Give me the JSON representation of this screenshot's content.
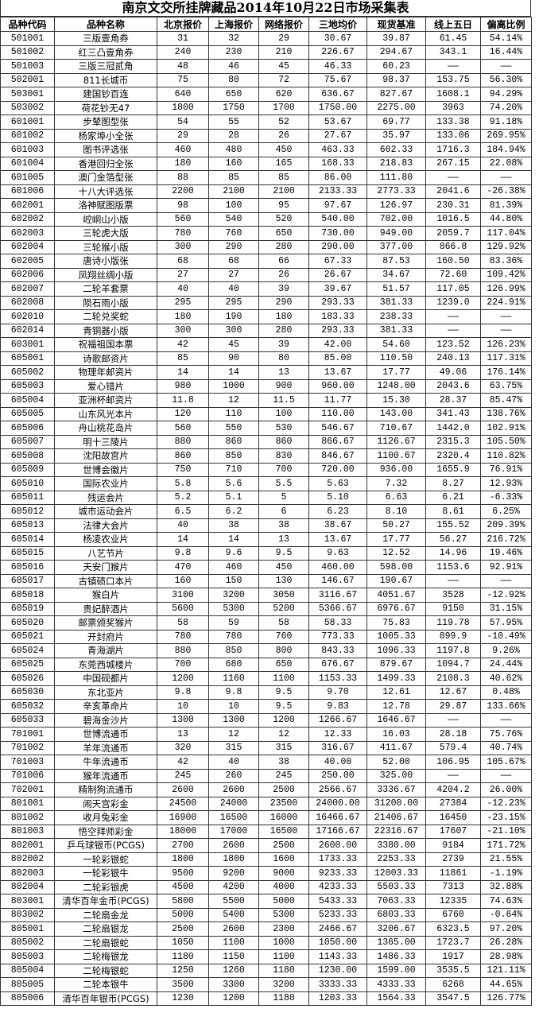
{
  "title": "南京文交所挂牌藏品2014年10月22日市场采集表",
  "columns": [
    "品种代码",
    "品种名称",
    "北京报价",
    "上海报价",
    "网络报价",
    "三地均价",
    "现货基准",
    "线上五日",
    "偏离比例"
  ],
  "rows": [
    [
      "501001",
      "三版壹角券",
      "31",
      "32",
      "29",
      "30.67",
      "39.87",
      "61.45",
      "54.14%"
    ],
    [
      "501002",
      "红三凸壹角券",
      "240",
      "230",
      "210",
      "226.67",
      "294.67",
      "343.1",
      "16.44%"
    ],
    [
      "501003",
      "三版三冠贰角",
      "48",
      "46",
      "45",
      "46.33",
      "60.23",
      "——",
      "——"
    ],
    [
      "502001",
      "811长城币",
      "75",
      "80",
      "72",
      "75.67",
      "98.37",
      "153.75",
      "56.30%"
    ],
    [
      "503001",
      "建国钞百连",
      "640",
      "650",
      "620",
      "636.67",
      "827.67",
      "1608.1",
      "94.29%"
    ],
    [
      "503002",
      "荷花钞无47",
      "1800",
      "1750",
      "1700",
      "1750.00",
      "2275.00",
      "3963",
      "74.20%"
    ],
    [
      "601001",
      "步辇图型张",
      "54",
      "55",
      "52",
      "53.67",
      "69.77",
      "133.38",
      "91.18%"
    ],
    [
      "601002",
      "杨家埠小全张",
      "29",
      "28",
      "26",
      "27.67",
      "35.97",
      "133.06",
      "269.95%"
    ],
    [
      "601003",
      "图书评选张",
      "460",
      "480",
      "450",
      "463.33",
      "602.33",
      "1716.3",
      "184.94%"
    ],
    [
      "601004",
      "香港回归全张",
      "180",
      "160",
      "165",
      "168.33",
      "218.83",
      "267.15",
      "22.08%"
    ],
    [
      "601005",
      "澳门金箔型张",
      "88",
      "85",
      "85",
      "86.00",
      "111.80",
      "——",
      "——"
    ],
    [
      "601006",
      "十八大评选张",
      "2200",
      "2100",
      "2100",
      "2133.33",
      "2773.33",
      "2041.6",
      "-26.38%"
    ],
    [
      "602001",
      "洛神赋图版票",
      "98",
      "100",
      "95",
      "97.67",
      "126.97",
      "230.31",
      "81.39%"
    ],
    [
      "602002",
      "崆峒山小版",
      "560",
      "540",
      "520",
      "540.00",
      "702.00",
      "1016.5",
      "44.80%"
    ],
    [
      "602003",
      "三轮虎大版",
      "780",
      "760",
      "650",
      "730.00",
      "949.00",
      "2059.7",
      "117.04%"
    ],
    [
      "602004",
      "三轮猴小版",
      "300",
      "290",
      "280",
      "290.00",
      "377.00",
      "866.8",
      "129.92%"
    ],
    [
      "602005",
      "唐诗小版张",
      "68",
      "68",
      "66",
      "67.33",
      "87.53",
      "160.50",
      "83.36%"
    ],
    [
      "602006",
      "凤翔丝绸小版",
      "27",
      "27",
      "26",
      "26.67",
      "34.67",
      "72.60",
      "109.42%"
    ],
    [
      "602007",
      "二轮羊套票",
      "40",
      "40",
      "39",
      "39.67",
      "51.57",
      "117.05",
      "126.99%"
    ],
    [
      "602008",
      "陨石雨小版",
      "295",
      "295",
      "290",
      "293.33",
      "381.33",
      "1239.0",
      "224.91%"
    ],
    [
      "602010",
      "二轮兑奖蛇",
      "180",
      "190",
      "180",
      "183.33",
      "238.33",
      "——",
      "——"
    ],
    [
      "602014",
      "青铜器小版",
      "300",
      "300",
      "280",
      "293.33",
      "381.33",
      "——",
      "——"
    ],
    [
      "603001",
      "祝福祖国本票",
      "42",
      "45",
      "39",
      "42.00",
      "54.60",
      "123.52",
      "126.23%"
    ],
    [
      "605001",
      "诗歌邮资片",
      "85",
      "90",
      "80",
      "85.00",
      "110.50",
      "240.13",
      "117.31%"
    ],
    [
      "605002",
      "物理年邮资片",
      "14",
      "14",
      "13",
      "13.67",
      "17.77",
      "49.06",
      "176.14%"
    ],
    [
      "605003",
      "爱心错片",
      "980",
      "1000",
      "900",
      "960.00",
      "1248.00",
      "2043.6",
      "63.75%"
    ],
    [
      "605004",
      "亚洲杯邮资片",
      "11.8",
      "12",
      "11.5",
      "11.77",
      "15.30",
      "28.37",
      "85.47%"
    ],
    [
      "605005",
      "山东风光本片",
      "120",
      "110",
      "100",
      "110.00",
      "143.00",
      "341.43",
      "138.76%"
    ],
    [
      "605006",
      "舟山桃花岛片",
      "560",
      "550",
      "530",
      "546.67",
      "710.67",
      "1442.0",
      "102.91%"
    ],
    [
      "605007",
      "明十三陵片",
      "880",
      "860",
      "860",
      "866.67",
      "1126.67",
      "2315.3",
      "105.50%"
    ],
    [
      "605008",
      "沈阳故宫片",
      "860",
      "850",
      "830",
      "846.67",
      "1100.67",
      "2320.4",
      "110.82%"
    ],
    [
      "605009",
      "世博会徽片",
      "750",
      "710",
      "700",
      "720.00",
      "936.00",
      "1655.9",
      "76.91%"
    ],
    [
      "605010",
      "国际农业片",
      "5.8",
      "5.6",
      "5.5",
      "5.63",
      "7.32",
      "8.27",
      "12.93%"
    ],
    [
      "605011",
      "残运会片",
      "5.2",
      "5.1",
      "5",
      "5.10",
      "6.63",
      "6.21",
      "-6.33%"
    ],
    [
      "605012",
      "城市运动会片",
      "6.5",
      "6.2",
      "6",
      "6.23",
      "8.10",
      "8.61",
      "6.25%"
    ],
    [
      "605013",
      "法律大会片",
      "40",
      "38",
      "38",
      "38.67",
      "50.27",
      "155.52",
      "209.39%"
    ],
    [
      "605014",
      "杨凌农业片",
      "14",
      "14",
      "13",
      "13.67",
      "17.77",
      "56.27",
      "216.72%"
    ],
    [
      "605015",
      "八艺节片",
      "9.8",
      "9.6",
      "9.5",
      "9.63",
      "12.52",
      "14.96",
      "19.46%"
    ],
    [
      "605016",
      "天安门猴片",
      "470",
      "460",
      "450",
      "460.00",
      "598.00",
      "1153.6",
      "92.91%"
    ],
    [
      "605017",
      "古镇碛口本片",
      "160",
      "150",
      "130",
      "146.67",
      "190.67",
      "——",
      "——"
    ],
    [
      "605018",
      "猴白片",
      "3100",
      "3200",
      "3050",
      "3116.67",
      "4051.67",
      "3528",
      "-12.92%"
    ],
    [
      "605019",
      "贵妃醉酒片",
      "5600",
      "5300",
      "5200",
      "5366.67",
      "6976.67",
      "9150",
      "31.15%"
    ],
    [
      "605020",
      "邮票颁奖猴片",
      "58",
      "59",
      "58",
      "58.33",
      "75.83",
      "119.78",
      "57.95%"
    ],
    [
      "605021",
      "开封府片",
      "780",
      "780",
      "760",
      "773.33",
      "1005.33",
      "899.9",
      "-10.49%"
    ],
    [
      "605024",
      "青海湖片",
      "880",
      "850",
      "800",
      "843.33",
      "1096.33",
      "1197.8",
      "9.26%"
    ],
    [
      "605025",
      "东莞西城楼片",
      "700",
      "680",
      "650",
      "676.67",
      "879.67",
      "1094.7",
      "24.44%"
    ],
    [
      "605026",
      "中国砚都片",
      "1200",
      "1160",
      "1100",
      "1153.33",
      "1499.33",
      "2108.3",
      "40.62%"
    ],
    [
      "605030",
      "东北亚片",
      "9.8",
      "9.8",
      "9.5",
      "9.70",
      "12.61",
      "12.67",
      "0.48%"
    ],
    [
      "605032",
      "辛亥革命片",
      "10",
      "10",
      "9.5",
      "9.83",
      "12.78",
      "29.87",
      "133.66%"
    ],
    [
      "605033",
      "碧海金沙片",
      "1300",
      "1300",
      "1200",
      "1266.67",
      "1646.67",
      "——",
      "——"
    ],
    [
      "701001",
      "世博流通币",
      "13",
      "12",
      "12",
      "12.33",
      "16.03",
      "28.18",
      "75.76%"
    ],
    [
      "701002",
      "羊年流通币",
      "320",
      "315",
      "315",
      "316.67",
      "411.67",
      "579.4",
      "40.74%"
    ],
    [
      "701003",
      "牛年流通币",
      "42",
      "40",
      "38",
      "40.00",
      "52.00",
      "106.95",
      "105.67%"
    ],
    [
      "701006",
      "猴年流通币",
      "245",
      "260",
      "245",
      "250.00",
      "325.00",
      "——",
      "——"
    ],
    [
      "702001",
      "精制狗流通币",
      "2600",
      "2600",
      "2500",
      "2566.67",
      "3336.67",
      "4204.2",
      "26.00%"
    ],
    [
      "801001",
      "闹天宫彩金",
      "24500",
      "24000",
      "23500",
      "24000.00",
      "31200.00",
      "27384",
      "-12.23%"
    ],
    [
      "801002",
      "收月兔彩金",
      "16900",
      "16500",
      "16000",
      "16466.67",
      "21406.67",
      "16450",
      "-23.15%"
    ],
    [
      "801003",
      "悟空拜师彩金",
      "18000",
      "17000",
      "16500",
      "17166.67",
      "22316.67",
      "17607",
      "-21.10%"
    ],
    [
      "802001",
      "乒乓球银币(PCGS)",
      "2700",
      "2600",
      "2500",
      "2600.00",
      "3380.00",
      "9184",
      "171.72%"
    ],
    [
      "802002",
      "一轮彩银蛇",
      "1800",
      "1800",
      "1600",
      "1733.33",
      "2253.33",
      "2739",
      "21.55%"
    ],
    [
      "802003",
      "一轮彩银牛",
      "9500",
      "9200",
      "9000",
      "9233.33",
      "12003.33",
      "11861",
      "-1.19%"
    ],
    [
      "802004",
      "二轮彩银虎",
      "4500",
      "4200",
      "4000",
      "4233.33",
      "5503.33",
      "7313",
      "32.88%"
    ],
    [
      "803001",
      "清华百年金币(PCGS)",
      "5800",
      "5500",
      "5000",
      "5433.33",
      "7063.33",
      "12335",
      "74.63%"
    ],
    [
      "803002",
      "二轮扇金龙",
      "5000",
      "5400",
      "5300",
      "5233.33",
      "6803.33",
      "6760",
      "-0.64%"
    ],
    [
      "805001",
      "二轮扇银龙",
      "2500",
      "2600",
      "2300",
      "2466.67",
      "3206.67",
      "6323.5",
      "97.20%"
    ],
    [
      "805002",
      "二轮扇银蛇",
      "1050",
      "1100",
      "1000",
      "1050.00",
      "1365.00",
      "1723.7",
      "26.28%"
    ],
    [
      "805003",
      "二轮梅银龙",
      "1180",
      "1150",
      "1100",
      "1143.33",
      "1486.33",
      "1917",
      "28.98%"
    ],
    [
      "805004",
      "二轮梅银蛇",
      "1250",
      "1260",
      "1180",
      "1230.00",
      "1599.00",
      "3535.5",
      "121.11%"
    ],
    [
      "805005",
      "二轮本银牛",
      "3500",
      "3300",
      "3200",
      "3333.33",
      "4333.33",
      "6268",
      "44.65%"
    ],
    [
      "805006",
      "清华百年银币(PCGS)",
      "1230",
      "1200",
      "1180",
      "1203.33",
      "1564.33",
      "3547.5",
      "126.77%"
    ]
  ]
}
